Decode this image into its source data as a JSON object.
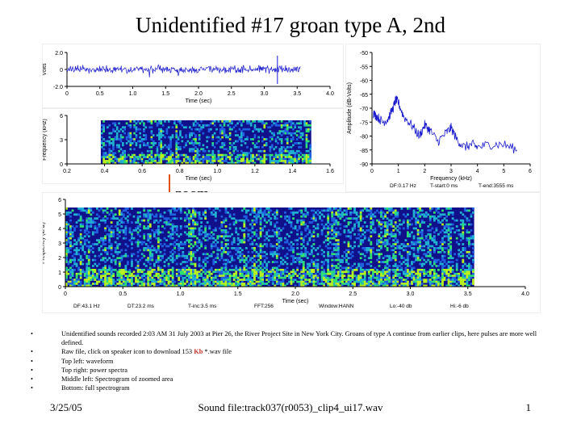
{
  "title": "Unidentified #17 groan type A, 2nd",
  "zoom_label": "zoom",
  "colors": {
    "trace": "#1a1acc",
    "spec_bg": "#10108a",
    "arrow": "#e05010"
  },
  "chart_data": [
    {
      "name": "waveform",
      "type": "line",
      "ylabel": "Volts",
      "xlabel": "Time (sec)",
      "yticks": [
        "2.0",
        "0",
        "-2.0"
      ],
      "ylim": [
        -2,
        2
      ],
      "xticks": [
        "0",
        "0.5",
        "1.0",
        "1.5",
        "2.0",
        "2.5",
        "3.0",
        "3.5",
        "4.0"
      ],
      "xlim": [
        0,
        4.0
      ],
      "duration": 3.555
    },
    {
      "name": "power-spectrum",
      "type": "line",
      "ylabel": "Amplitude (dB-Volts)",
      "xlabel": "Frequency (kHz)",
      "yticks": [
        "-50",
        "-55",
        "-60",
        "-65",
        "-70",
        "-75",
        "-80",
        "-85",
        "-90"
      ],
      "ylim": [
        -90,
        -50
      ],
      "xticks": [
        "0",
        "1",
        "2",
        "3",
        "4",
        "5",
        "6"
      ],
      "xlim": [
        0,
        6
      ],
      "x": [
        0.05,
        0.2,
        0.4,
        0.6,
        0.8,
        0.9,
        1.0,
        1.2,
        1.5,
        1.8,
        2.0,
        2.2,
        2.5,
        2.8,
        3.0,
        3.2,
        3.5,
        3.8,
        4.0,
        4.5,
        5.0,
        5.5
      ],
      "y": [
        -72,
        -73,
        -75,
        -74,
        -70,
        -67,
        -68,
        -73,
        -76,
        -80,
        -76,
        -78,
        -82,
        -79,
        -77,
        -81,
        -84,
        -83,
        -84,
        -83,
        -83,
        -85
      ],
      "info": {
        "df": "DF:0.17 Hz",
        "t_start": "T-start:0 ms",
        "t_end": "T-end:3555 ms"
      }
    },
    {
      "name": "spectrogram-zoomed",
      "type": "heatmap",
      "ylabel": "Frequency (kHz)",
      "xlabel": "Time (sec)",
      "yticks": [
        "6",
        "3",
        "0"
      ],
      "ylim": [
        0,
        6
      ],
      "xticks": [
        "0.2",
        "0.4",
        "0.6",
        "0.8",
        "1.0",
        "1.2",
        "1.4",
        "1.6"
      ],
      "xlim": [
        0.2,
        1.6
      ]
    },
    {
      "name": "spectrogram-full",
      "type": "heatmap",
      "ylabel": "Frequency (kHz)",
      "xlabel": "Time (sec)",
      "yticks": [
        "6",
        "5",
        "4",
        "3",
        "2",
        "1",
        "0"
      ],
      "ylim": [
        0,
        6
      ],
      "xticks": [
        "0",
        "0.5",
        "1.0",
        "1.5",
        "2.0",
        "2.5",
        "3.0",
        "3.5",
        "4.0"
      ],
      "xlim": [
        0,
        4.0
      ],
      "info": [
        "DF:43.1 Hz",
        "DT:23.2 ms",
        "T-inc:3.5 ms",
        "FFT:256",
        "Window:HANN",
        "Lo:-40 db",
        "Hi:-6 db"
      ]
    }
  ],
  "bullets": {
    "b1": "Unidentified sounds recorded 2:03 AM 31 July 2003 at Pier 26, the River Project Site in New York City. Groans of type A continue from earlier clips, here pulses are more well defined.",
    "b2_pre": "Raw file, click on speaker icon to download 153 ",
    "b2_hl": "Kb",
    "b2_post": " *.wav file",
    "b3": "Top left: waveform",
    "b4": "Top right: power spectra",
    "b5": "Middle left: Spectrogram of zoomed area",
    "b6": "Bottom: full spectrogram",
    "dot": "•"
  },
  "footer": {
    "date": "3/25/05",
    "file": "Sound file:track037(r0053)_clip4_ui17.wav",
    "page": "1"
  }
}
